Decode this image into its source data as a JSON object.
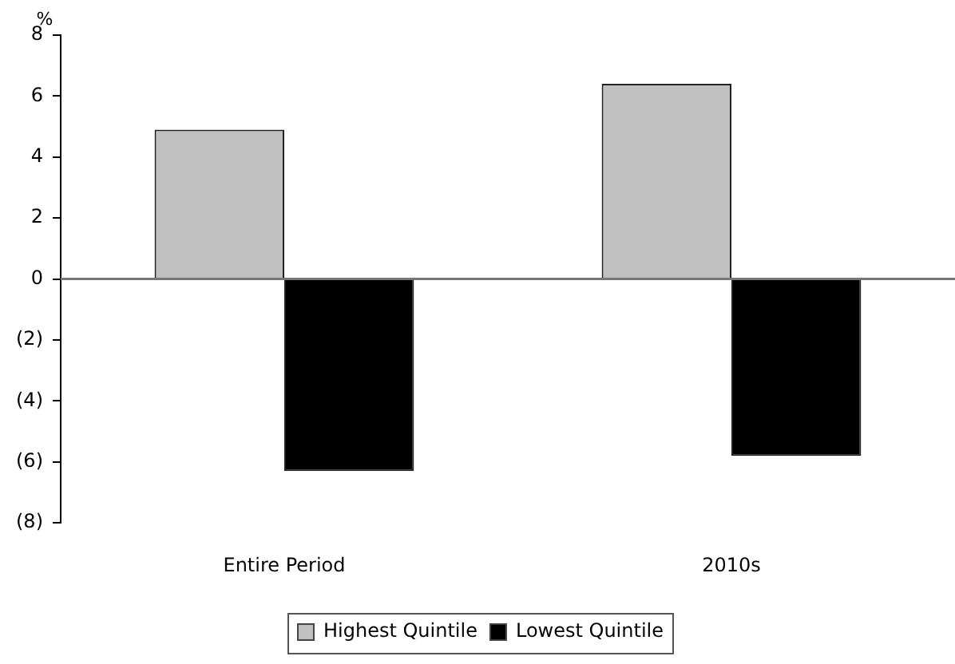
{
  "chart_data": {
    "type": "bar",
    "ylabel": "%",
    "categories": [
      "Entire Period",
      "2010s"
    ],
    "series": [
      {
        "name": "Highest Quintile",
        "color": "#c0c0c0",
        "values": [
          4.9,
          6.4
        ]
      },
      {
        "name": "Lowest Quintile",
        "color": "#000000",
        "values": [
          -6.3,
          -5.8
        ]
      }
    ],
    "ylim": [
      -8,
      8
    ],
    "yticks": [
      {
        "value": -8,
        "label": "(8)"
      },
      {
        "value": -6,
        "label": "(6)"
      },
      {
        "value": -4,
        "label": "(4)"
      },
      {
        "value": -2,
        "label": "(2)"
      },
      0,
      2,
      4,
      6,
      8
    ],
    "ref_lines": [
      {
        "axis": "y",
        "value": 0,
        "color": "#777777"
      }
    ],
    "grid": false,
    "legend": "bottom"
  }
}
